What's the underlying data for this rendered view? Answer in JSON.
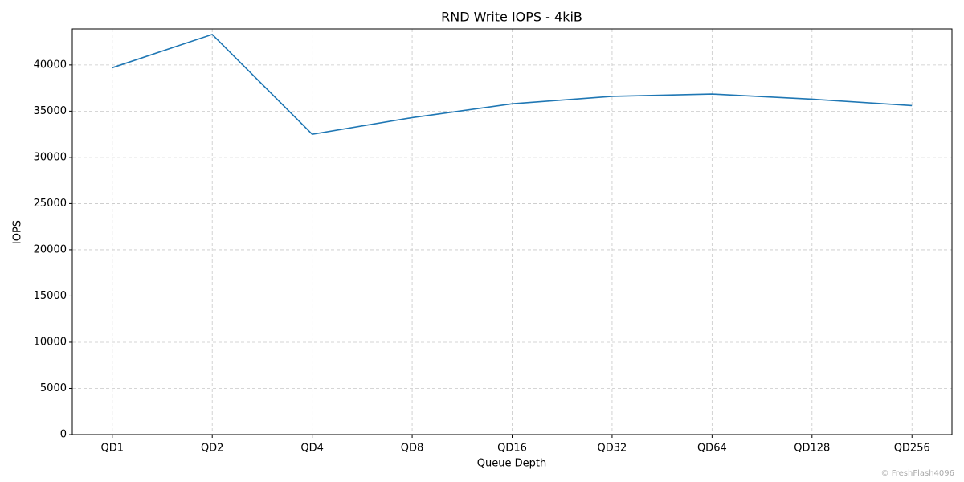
{
  "chart_data": {
    "type": "line",
    "title": "RND Write IOPS - 4kiB",
    "x_label": "Queue Depth",
    "y_label": "IOPS",
    "categories": [
      "QD1",
      "QD2",
      "QD4",
      "QD8",
      "QD16",
      "QD32",
      "QD64",
      "QD128",
      "QD256"
    ],
    "series": [
      {
        "name": "IOPS",
        "color": "#1f77b4",
        "values": [
          39700,
          43300,
          32500,
          34300,
          35800,
          36600,
          36850,
          36300,
          35600
        ]
      }
    ],
    "ylim": [
      0,
      43900
    ],
    "yticks": [
      0,
      5000,
      10000,
      15000,
      20000,
      25000,
      30000,
      35000,
      40000
    ],
    "grid": true,
    "watermark": "© FreshFlash4096"
  }
}
